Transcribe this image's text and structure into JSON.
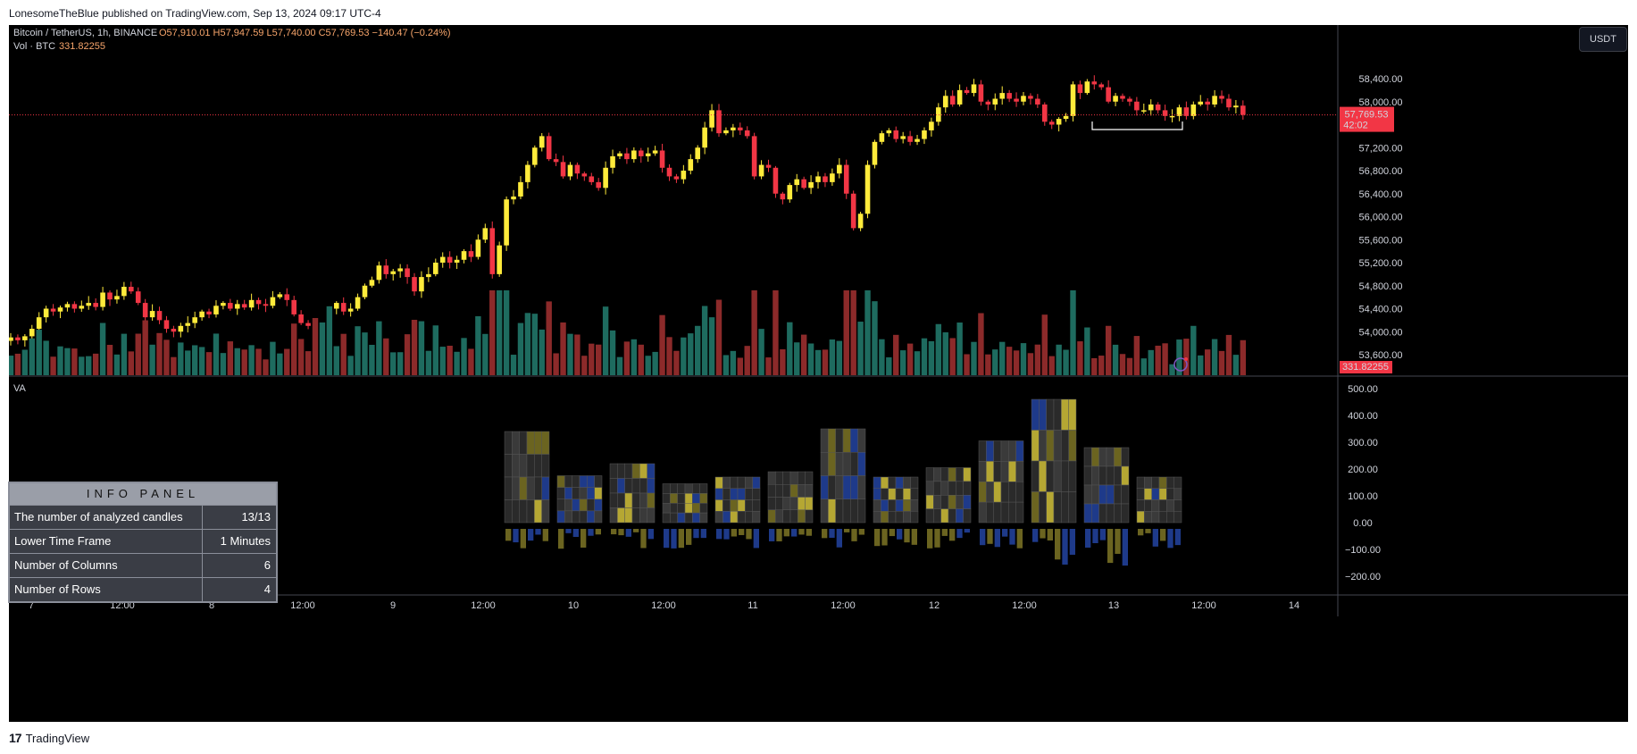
{
  "header": {
    "publisher": "LonesomeTheBlue",
    "rest": "published on TradingView.com, Sep 13, 2024 09:17 UTC-4"
  },
  "footer": {
    "brand": "TradingView",
    "mark": "17"
  },
  "legend": {
    "symbol": "Bitcoin / TetherUS, 1h, BINANCE",
    "open": "O57,910.01",
    "high": "H57,947.59",
    "low": "L57,740.00",
    "close": "C57,769.53",
    "change": "−140.47 (−0.24%)",
    "vol_label": "Vol · BTC",
    "vol_value": "331.82255"
  },
  "currency_button": "USDT",
  "price_axis": {
    "ticks": [
      "58,400.00",
      "58,000.00",
      "57,200.00",
      "56,800.00",
      "56,400.00",
      "56,000.00",
      "55,600.00",
      "55,200.00",
      "54,800.00",
      "54,400.00",
      "54,000.00",
      "53,600.00"
    ],
    "current_price": "57,769.53",
    "countdown": "42:02",
    "volume_tag": "331.82255"
  },
  "indicator": {
    "name": "VA",
    "axis_ticks": [
      "500.00",
      "400.00",
      "300.00",
      "200.00",
      "100.00",
      "0.00",
      "−100.00",
      "−200.00"
    ]
  },
  "info_panel": {
    "title": "INFO PANEL",
    "rows": [
      {
        "label": "The number of analyzed candles",
        "value": "13/13"
      },
      {
        "label": "Lower Time Frame",
        "value": "1 Minutes"
      },
      {
        "label": "Number of Columns",
        "value": "6"
      },
      {
        "label": "Number of Rows",
        "value": "4"
      }
    ]
  },
  "time_axis": [
    "7",
    "12:00",
    "8",
    "12:00",
    "9",
    "12:00",
    "10",
    "12:00",
    "11",
    "12:00",
    "12",
    "12:00",
    "13",
    "12:00",
    "14"
  ],
  "colors": {
    "up": "#ffeb3b",
    "down": "#f23645",
    "vol_up": "#1e6b5f",
    "vol_down": "#8c2a2a",
    "va_yellow": "#b5a733",
    "va_blue": "#1e3a8a",
    "va_bright_blue": "#2962ff",
    "bg": "#000000"
  },
  "chart_data": {
    "type": "candlestick",
    "symbol": "Bitcoin / TetherUS",
    "interval": "1h",
    "ylim": [
      53300,
      58800
    ],
    "closes": [
      53900,
      53850,
      53920,
      54050,
      54250,
      54400,
      54350,
      54420,
      54480,
      54400,
      54450,
      54500,
      54430,
      54680,
      54560,
      54620,
      54780,
      54700,
      54500,
      54250,
      54360,
      54200,
      54050,
      54000,
      54100,
      54150,
      54250,
      54350,
      54300,
      54450,
      54500,
      54400,
      54480,
      54420,
      54550,
      54480,
      54450,
      54600,
      54650,
      54550,
      54300,
      54150,
      54100,
      53800,
      54050,
      54400,
      54500,
      54350,
      54400,
      54600,
      54800,
      54900,
      55150,
      55000,
      55050,
      55100,
      54950,
      54700,
      54950,
      55000,
      55200,
      55300,
      55200,
      55250,
      55400,
      55300,
      55600,
      55800,
      55000,
      55500,
      56300,
      56350,
      56600,
      56900,
      57200,
      57400,
      57000,
      56950,
      56700,
      56900,
      56750,
      56700,
      56600,
      56500,
      56850,
      57050,
      57100,
      57000,
      57150,
      57050,
      57100,
      57150,
      56850,
      56700,
      56650,
      56800,
      57000,
      57200,
      57550,
      57850,
      57450,
      57500,
      57550,
      57500,
      57400,
      56700,
      56900,
      56850,
      56400,
      56300,
      56550,
      56650,
      56500,
      56600,
      56700,
      56600,
      56750,
      56900,
      56400,
      55800,
      56050,
      56900,
      57300,
      57450,
      57500,
      57350,
      57400,
      57300,
      57350,
      57500,
      57650,
      57900,
      58100,
      57950,
      58200,
      58150,
      58300,
      58000,
      57950,
      58050,
      58150,
      58050,
      58000,
      58100,
      58050,
      57950,
      57650,
      57600,
      57700,
      57750,
      58300,
      58150,
      58350,
      58300,
      58250,
      58000,
      58100,
      58050,
      58000,
      57850,
      57850,
      57950,
      57850,
      57750,
      57750,
      57900,
      57750,
      57950,
      58000,
      57950,
      58100,
      58050,
      57900,
      57930,
      57770
    ]
  }
}
